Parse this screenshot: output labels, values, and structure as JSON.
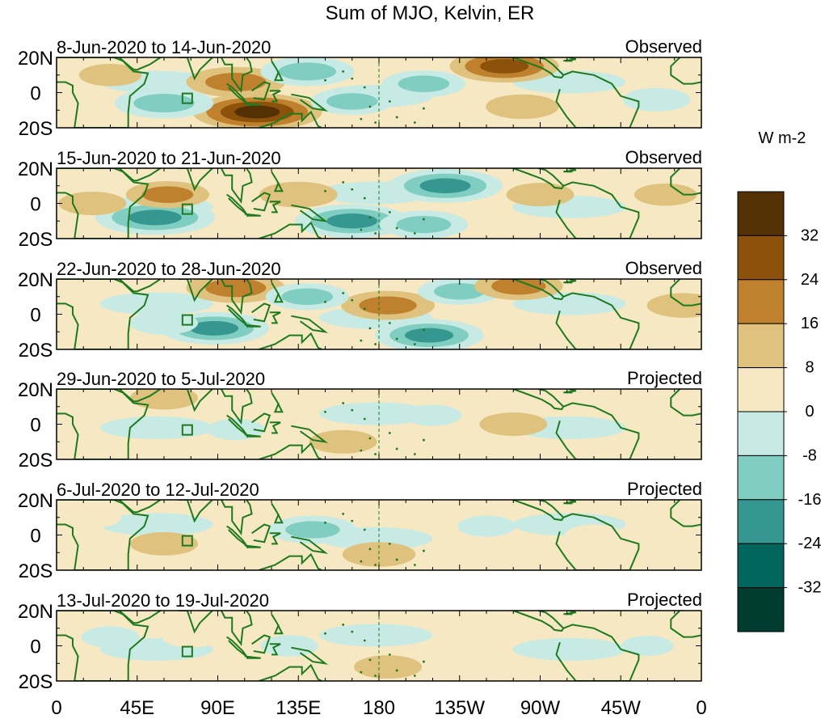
{
  "chart_data": {
    "type": "heatmap",
    "title": "Sum of MJO, Kelvin, ER",
    "units": "W m-2",
    "x_ticks": [
      "0",
      "45E",
      "90E",
      "135E",
      "180",
      "135W",
      "90W",
      "45W",
      "0"
    ],
    "x_range": [
      0,
      360
    ],
    "y_ticks": [
      "20N",
      "0",
      "20S"
    ],
    "y_range": [
      -20,
      20
    ],
    "reference_line_lon": 180,
    "colorbar": {
      "labels": [
        "32",
        "24",
        "16",
        "8",
        "0",
        "-8",
        "-16",
        "-24",
        "-32"
      ],
      "levels": [
        32,
        24,
        16,
        8,
        0,
        -8,
        -16,
        -24,
        -32
      ],
      "colors": [
        "#543005",
        "#8c510a",
        "#bf812d",
        "#dfc27d",
        "#f6e8c3",
        "#c7eae5",
        "#80cdc1",
        "#35978f",
        "#01665e",
        "#003c30"
      ]
    },
    "panels": [
      {
        "date_range": "8-Jun-2020 to 14-Jun-2020",
        "status": "Observed",
        "anomalies": [
          {
            "lon": 112,
            "lat": -11,
            "value": 34
          },
          {
            "lon": 100,
            "lat": 6,
            "value": 22
          },
          {
            "lon": 60,
            "lat": -6,
            "value": -22
          },
          {
            "lon": 140,
            "lat": 12,
            "value": -20
          },
          {
            "lon": 165,
            "lat": -5,
            "value": -16
          },
          {
            "lon": 205,
            "lat": 5,
            "value": -16
          },
          {
            "lon": 250,
            "lat": 15,
            "value": 26
          },
          {
            "lon": 260,
            "lat": -8,
            "value": 12
          },
          {
            "lon": 30,
            "lat": 10,
            "value": 8
          },
          {
            "lon": 335,
            "lat": -4,
            "value": -10
          }
        ]
      },
      {
        "date_range": "15-Jun-2020 to 21-Jun-2020",
        "status": "Observed",
        "anomalies": [
          {
            "lon": 55,
            "lat": -8,
            "value": -30
          },
          {
            "lon": 165,
            "lat": -10,
            "value": -28
          },
          {
            "lon": 217,
            "lat": 10,
            "value": -28
          },
          {
            "lon": 205,
            "lat": -12,
            "value": -18
          },
          {
            "lon": 135,
            "lat": 5,
            "value": 14
          },
          {
            "lon": 62,
            "lat": 5,
            "value": 16
          },
          {
            "lon": 270,
            "lat": 5,
            "value": 10
          },
          {
            "lon": 20,
            "lat": 0,
            "value": 10
          },
          {
            "lon": 340,
            "lat": 5,
            "value": 8
          }
        ]
      },
      {
        "date_range": "22-Jun-2020 to 28-Jun-2020",
        "status": "Observed",
        "anomalies": [
          {
            "lon": 88,
            "lat": -8,
            "value": -26
          },
          {
            "lon": 208,
            "lat": -12,
            "value": -26
          },
          {
            "lon": 100,
            "lat": 15,
            "value": 22
          },
          {
            "lon": 185,
            "lat": 5,
            "value": 20
          },
          {
            "lon": 225,
            "lat": 13,
            "value": -16
          },
          {
            "lon": 140,
            "lat": 10,
            "value": -16
          },
          {
            "lon": 258,
            "lat": 16,
            "value": 18
          },
          {
            "lon": 60,
            "lat": -5,
            "value": -10
          },
          {
            "lon": 350,
            "lat": 5,
            "value": 12
          }
        ]
      },
      {
        "date_range": "29-Jun-2020 to 5-Jul-2020",
        "status": "Projected",
        "anomalies": [
          {
            "lon": 60,
            "lat": 15,
            "value": 10
          },
          {
            "lon": 160,
            "lat": -10,
            "value": 10
          },
          {
            "lon": 255,
            "lat": 0,
            "value": 10
          },
          {
            "lon": 100,
            "lat": -3,
            "value": -6
          },
          {
            "lon": 210,
            "lat": 5,
            "value": -6
          },
          {
            "lon": 335,
            "lat": 5,
            "value": 6
          }
        ]
      },
      {
        "date_range": "6-Jul-2020 to 12-Jul-2020",
        "status": "Projected",
        "anomalies": [
          {
            "lon": 143,
            "lat": 3,
            "value": -18
          },
          {
            "lon": 180,
            "lat": -11,
            "value": 12
          },
          {
            "lon": 60,
            "lat": -5,
            "value": 10
          },
          {
            "lon": 20,
            "lat": 10,
            "value": 6
          },
          {
            "lon": 300,
            "lat": 0,
            "value": 6
          },
          {
            "lon": 240,
            "lat": 5,
            "value": -6
          }
        ]
      },
      {
        "date_range": "13-Jul-2020 to 19-Jul-2020",
        "status": "Projected",
        "anomalies": [
          {
            "lon": 185,
            "lat": -12,
            "value": 10
          },
          {
            "lon": 75,
            "lat": 5,
            "value": 6
          },
          {
            "lon": 240,
            "lat": 5,
            "value": 6
          },
          {
            "lon": 130,
            "lat": 0,
            "value": -6
          },
          {
            "lon": 30,
            "lat": 5,
            "value": -6
          },
          {
            "lon": 330,
            "lat": 0,
            "value": -4
          }
        ]
      }
    ]
  }
}
